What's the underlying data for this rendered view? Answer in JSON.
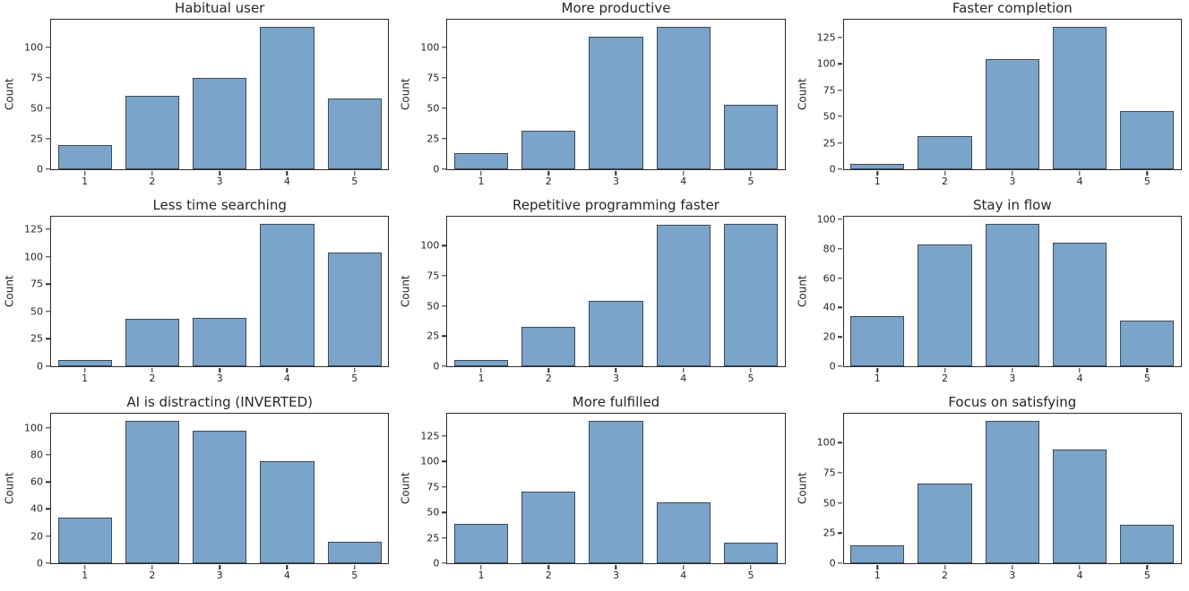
{
  "figure": {
    "background": "#ffffff",
    "bar_fill": "#7aa4c9",
    "bar_edge": "#3f4956",
    "axis_color": "#2b2b2b",
    "text_color": "#262626",
    "grid_rows": 3,
    "grid_cols": 3
  },
  "chart_data": [
    {
      "type": "bar",
      "title": "Habitual user",
      "ylabel": "Count",
      "categories": [
        "1",
        "2",
        "3",
        "4",
        "5"
      ],
      "values": [
        20,
        60,
        75,
        117,
        58
      ],
      "yticks": [
        0,
        25,
        50,
        75,
        100
      ],
      "ylim": [
        0,
        122.85
      ],
      "grid": "off",
      "legend": "none"
    },
    {
      "type": "bar",
      "title": "More productive",
      "ylabel": "Count",
      "categories": [
        "1",
        "2",
        "3",
        "4",
        "5"
      ],
      "values": [
        13,
        32,
        109,
        117,
        53
      ],
      "yticks": [
        0,
        25,
        50,
        75,
        100
      ],
      "ylim": [
        0,
        122.85
      ],
      "grid": "off",
      "legend": "none"
    },
    {
      "type": "bar",
      "title": "Faster completion",
      "ylabel": "Count",
      "categories": [
        "1",
        "2",
        "3",
        "4",
        "5"
      ],
      "values": [
        5,
        31,
        104,
        135,
        55
      ],
      "yticks": [
        0,
        25,
        50,
        75,
        100,
        125
      ],
      "ylim": [
        0,
        141.75
      ],
      "grid": "off",
      "legend": "none"
    },
    {
      "type": "bar",
      "title": "Less time searching",
      "ylabel": "Count",
      "categories": [
        "1",
        "2",
        "3",
        "4",
        "5"
      ],
      "values": [
        6,
        43,
        44,
        130,
        104
      ],
      "yticks": [
        0,
        25,
        50,
        75,
        100,
        125
      ],
      "ylim": [
        0,
        136.5
      ],
      "grid": "off",
      "legend": "none"
    },
    {
      "type": "bar",
      "title": "Repetitive programming faster",
      "ylabel": "Count",
      "categories": [
        "1",
        "2",
        "3",
        "4",
        "5"
      ],
      "values": [
        5,
        33,
        54,
        117,
        118
      ],
      "yticks": [
        0,
        25,
        50,
        75,
        100
      ],
      "ylim": [
        0,
        123.9
      ],
      "grid": "off",
      "legend": "none"
    },
    {
      "type": "bar",
      "title": "Stay in flow",
      "ylabel": "Count",
      "categories": [
        "1",
        "2",
        "3",
        "4",
        "5"
      ],
      "values": [
        34,
        83,
        97,
        84,
        31
      ],
      "yticks": [
        0,
        20,
        40,
        60,
        80,
        100
      ],
      "ylim": [
        0,
        101.85
      ],
      "grid": "off",
      "legend": "none"
    },
    {
      "type": "bar",
      "title": "AI is distracting (INVERTED)",
      "ylabel": "Count",
      "categories": [
        "1",
        "2",
        "3",
        "4",
        "5"
      ],
      "values": [
        34,
        105,
        98,
        75,
        16
      ],
      "yticks": [
        0,
        20,
        40,
        60,
        80,
        100
      ],
      "ylim": [
        0,
        110.25
      ],
      "grid": "off",
      "legend": "none"
    },
    {
      "type": "bar",
      "title": "More fulfilled",
      "ylabel": "Count",
      "categories": [
        "1",
        "2",
        "3",
        "4",
        "5"
      ],
      "values": [
        39,
        70,
        140,
        60,
        20
      ],
      "yticks": [
        0,
        25,
        50,
        75,
        100,
        125
      ],
      "ylim": [
        0,
        147
      ],
      "grid": "off",
      "legend": "none"
    },
    {
      "type": "bar",
      "title": "Focus on satisfying",
      "ylabel": "Count",
      "categories": [
        "1",
        "2",
        "3",
        "4",
        "5"
      ],
      "values": [
        15,
        66,
        118,
        94,
        32
      ],
      "yticks": [
        0,
        25,
        50,
        75,
        100
      ],
      "ylim": [
        0,
        123.9
      ],
      "grid": "off",
      "legend": "none"
    }
  ]
}
